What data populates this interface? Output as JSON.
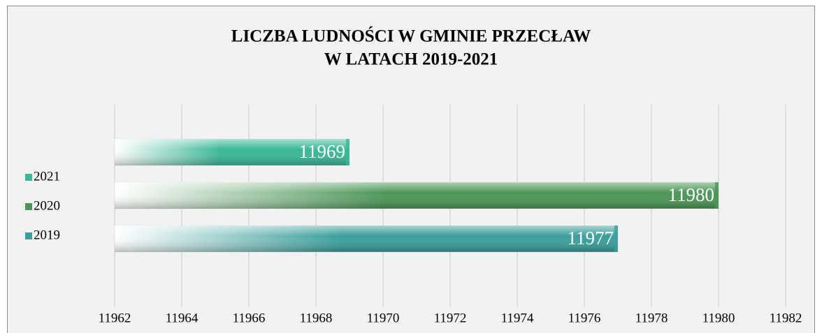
{
  "chart_data": {
    "type": "bar",
    "orientation": "horizontal",
    "title": [
      "LICZBA LUDNOŚCI W GMINIE PRZECŁAW",
      "W LATACH 2019-2021"
    ],
    "categories": [
      null
    ],
    "series": [
      {
        "name": "2019",
        "color": "#3a9f9c",
        "values": [
          11977
        ]
      },
      {
        "name": "2020",
        "color": "#4b9657",
        "values": [
          11980
        ]
      },
      {
        "name": "2021",
        "color": "#3ab896",
        "values": [
          11969
        ]
      }
    ],
    "xlim": [
      11962,
      11982
    ],
    "xticks": [
      11962,
      11964,
      11966,
      11968,
      11970,
      11972,
      11974,
      11976,
      11978,
      11980,
      11982
    ],
    "grid": true,
    "legend": "left",
    "data_labels": true
  }
}
